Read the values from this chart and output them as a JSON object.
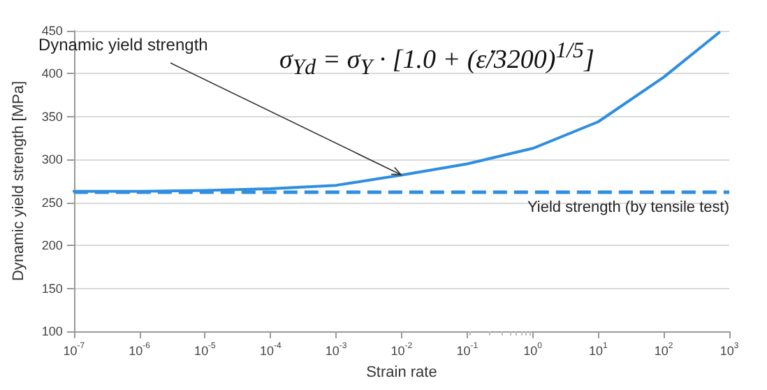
{
  "chart_data": {
    "type": "line",
    "xlabel": "Strain rate",
    "ylabel": "Dynamic yield strength [MPa]",
    "log": "x",
    "grid": "y",
    "marker": "none",
    "line_style": "solid",
    "x": [
      1e-07,
      1e-06,
      1e-05,
      0.0001,
      0.001,
      0.01,
      0.1,
      1,
      10,
      100,
      700
    ],
    "series": [
      {
        "color": "#2f8ee0",
        "values": [
          263,
          263,
          264,
          266,
          270,
          282,
          295,
          313,
          344,
          396,
          448
        ]
      }
    ],
    "xlim": [
      1e-07,
      1000
    ],
    "xticks": [
      {
        "value": 1e-07,
        "label": "10$^{-7}$"
      },
      {
        "value": 1e-06,
        "label": "10$^{-6}$"
      },
      {
        "value": 1e-05,
        "label": "10$^{-5}$"
      },
      {
        "value": 0.0001,
        "label": "10$^{-4}$"
      },
      {
        "value": 0.001,
        "label": "10$^{-3}$"
      },
      {
        "value": 0.01,
        "label": "10$^{-2}$"
      },
      {
        "value": 0.1,
        "label": "10$^{-1}$"
      },
      {
        "value": 1,
        "label": "10$^{0}$"
      },
      {
        "value": 10,
        "label": "10$^{1}$"
      },
      {
        "value": 100,
        "label": "10$^{2}$"
      },
      {
        "value": 1000,
        "label": "10$^{3}$"
      }
    ],
    "ylim": [
      100,
      450
    ],
    "yticks": [
      100,
      150,
      200,
      250,
      300,
      350,
      400,
      450
    ],
    "ref_lines": [
      {
        "axis": "y",
        "value": 263,
        "label": "Yield strength (by tensile test)",
        "color": "#2f8ee0",
        "line_style": "dashed"
      }
    ],
    "annotations": [
      {
        "text": "Dynamic yield strength",
        "x": 0.01,
        "y": 282
      },
      "σ$_{Yd}$ = σ$_{Y}$ · [1.0 + (ε̇/3200)$^{1/5}$]"
    ]
  }
}
